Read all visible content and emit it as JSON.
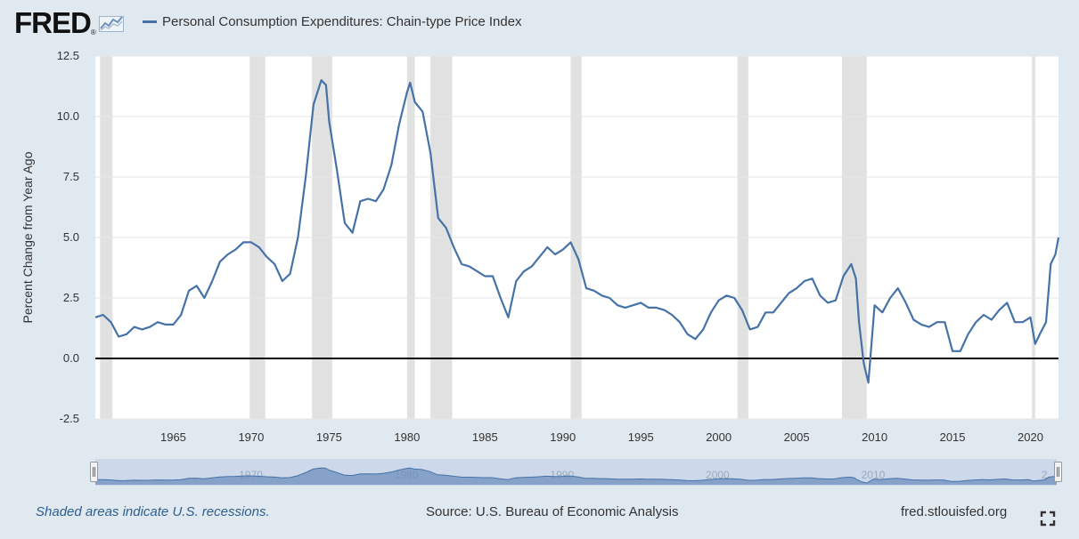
{
  "header": {
    "logo_text": "FRED",
    "logo_reg": "®"
  },
  "footer": {
    "recession_note": "Shaded areas indicate U.S. recessions.",
    "source": "Source: U.S. Bureau of Economic Analysis",
    "site": "fred.stlouisfed.org"
  },
  "colors": {
    "series": "#4572a7",
    "recession": "#e1e1e1",
    "background": "#e1e9f0",
    "plot": "#ffffff",
    "zero_line": "#000000",
    "navigator_fill": "#6f8fbd"
  },
  "icons": {
    "logo_graph": "fred-graph-icon",
    "fullscreen": "fullscreen-icon"
  },
  "chart_data": {
    "type": "line",
    "title": "",
    "ylabel": "Percent Change from Year Ago",
    "xlabel": "",
    "xlim": [
      1960.0,
      2021.8
    ],
    "ylim": [
      -2.5,
      12.5
    ],
    "yticks": [
      -2.5,
      0.0,
      2.5,
      5.0,
      7.5,
      10.0,
      12.5
    ],
    "ytick_labels": [
      "-2.5",
      "0.0",
      "2.5",
      "5.0",
      "7.5",
      "10.0",
      "12.5"
    ],
    "xticks": [
      1965,
      1970,
      1975,
      1980,
      1985,
      1990,
      1995,
      2000,
      2005,
      2010,
      2015,
      2020
    ],
    "xtick_labels": [
      "1965",
      "1970",
      "1975",
      "1980",
      "1985",
      "1990",
      "1995",
      "2000",
      "2005",
      "2010",
      "2015",
      "2020"
    ],
    "grid": true,
    "zero_line": true,
    "legend_position": "top-left",
    "navigator_labels": [
      "1970",
      "1980",
      "1990",
      "2000",
      "2010",
      "2"
    ],
    "recessions": [
      [
        1960.3,
        1961.1
      ],
      [
        1969.9,
        1970.9
      ],
      [
        1973.9,
        1975.2
      ],
      [
        1980.0,
        1980.5
      ],
      [
        1981.5,
        1982.9
      ],
      [
        1990.5,
        1991.2
      ],
      [
        2001.2,
        2001.9
      ],
      [
        2007.9,
        2009.5
      ],
      [
        2020.1,
        2020.3
      ]
    ],
    "series": [
      {
        "name": "Personal Consumption Expenditures: Chain-type Price Index",
        "x": [
          1960.0,
          1960.5,
          1961.0,
          1961.5,
          1962.0,
          1962.5,
          1963.0,
          1963.5,
          1964.0,
          1964.5,
          1965.0,
          1965.5,
          1966.0,
          1966.5,
          1967.0,
          1967.5,
          1968.0,
          1968.5,
          1969.0,
          1969.5,
          1970.0,
          1970.5,
          1971.0,
          1971.5,
          1972.0,
          1972.5,
          1973.0,
          1973.5,
          1974.0,
          1974.5,
          1974.8,
          1975.0,
          1975.5,
          1976.0,
          1976.5,
          1977.0,
          1977.5,
          1978.0,
          1978.5,
          1979.0,
          1979.5,
          1980.0,
          1980.2,
          1980.5,
          1981.0,
          1981.5,
          1982.0,
          1982.5,
          1983.0,
          1983.5,
          1984.0,
          1984.5,
          1985.0,
          1985.5,
          1986.0,
          1986.5,
          1987.0,
          1987.5,
          1988.0,
          1988.5,
          1989.0,
          1989.5,
          1990.0,
          1990.5,
          1991.0,
          1991.5,
          1992.0,
          1992.5,
          1993.0,
          1993.5,
          1994.0,
          1994.5,
          1995.0,
          1995.5,
          1996.0,
          1996.5,
          1997.0,
          1997.5,
          1998.0,
          1998.5,
          1999.0,
          1999.5,
          2000.0,
          2000.5,
          2001.0,
          2001.5,
          2002.0,
          2002.5,
          2003.0,
          2003.5,
          2004.0,
          2004.5,
          2005.0,
          2005.5,
          2006.0,
          2006.5,
          2007.0,
          2007.5,
          2008.0,
          2008.5,
          2008.8,
          2009.0,
          2009.3,
          2009.6,
          2010.0,
          2010.5,
          2011.0,
          2011.5,
          2012.0,
          2012.5,
          2013.0,
          2013.5,
          2014.0,
          2014.5,
          2015.0,
          2015.5,
          2016.0,
          2016.5,
          2017.0,
          2017.5,
          2018.0,
          2018.5,
          2019.0,
          2019.5,
          2020.0,
          2020.3,
          2020.6,
          2021.0,
          2021.3,
          2021.6,
          2021.8
        ],
        "values": [
          1.7,
          1.8,
          1.5,
          0.9,
          1.0,
          1.3,
          1.2,
          1.3,
          1.5,
          1.4,
          1.4,
          1.8,
          2.8,
          3.0,
          2.5,
          3.2,
          4.0,
          4.3,
          4.5,
          4.8,
          4.8,
          4.6,
          4.2,
          3.9,
          3.2,
          3.5,
          5.0,
          7.5,
          10.5,
          11.5,
          11.3,
          9.8,
          7.8,
          5.6,
          5.2,
          6.5,
          6.6,
          6.5,
          7.0,
          8.0,
          9.7,
          11.0,
          11.4,
          10.6,
          10.2,
          8.5,
          5.8,
          5.4,
          4.6,
          3.9,
          3.8,
          3.6,
          3.4,
          3.4,
          2.5,
          1.7,
          3.2,
          3.6,
          3.8,
          4.2,
          4.6,
          4.3,
          4.5,
          4.8,
          4.1,
          2.9,
          2.8,
          2.6,
          2.5,
          2.2,
          2.1,
          2.2,
          2.3,
          2.1,
          2.1,
          2.0,
          1.8,
          1.5,
          1.0,
          0.8,
          1.2,
          1.9,
          2.4,
          2.6,
          2.5,
          2.0,
          1.2,
          1.3,
          1.9,
          1.9,
          2.3,
          2.7,
          2.9,
          3.2,
          3.3,
          2.6,
          2.3,
          2.4,
          3.4,
          3.9,
          3.3,
          1.5,
          -0.2,
          -1.0,
          2.2,
          1.9,
          2.5,
          2.9,
          2.3,
          1.6,
          1.4,
          1.3,
          1.5,
          1.5,
          0.3,
          0.3,
          1.0,
          1.5,
          1.8,
          1.6,
          2.0,
          2.3,
          1.5,
          1.5,
          1.7,
          0.6,
          1.0,
          1.5,
          3.9,
          4.3,
          5.0
        ]
      }
    ]
  }
}
